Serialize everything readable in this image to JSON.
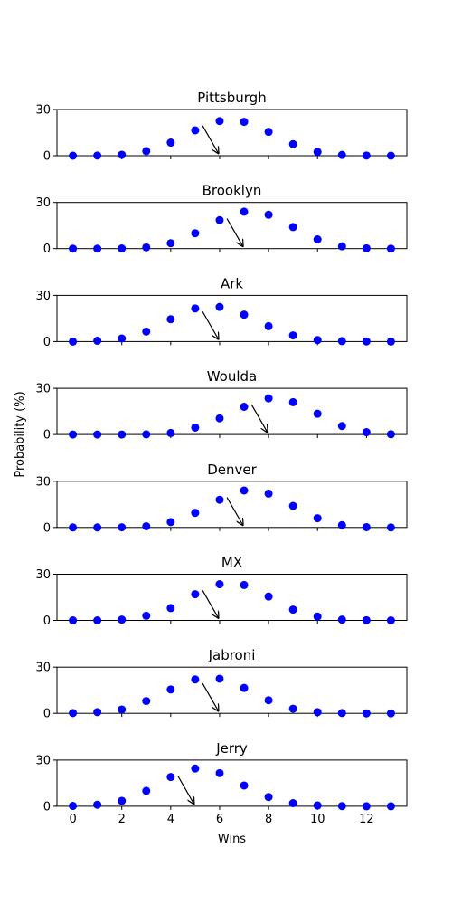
{
  "chart_data": {
    "type": "scatter",
    "xlabel": "Wins",
    "ylabel": "Probability (%)",
    "xlim": [
      -0.65,
      13.65
    ],
    "ylim": [
      0,
      30
    ],
    "x_ticks": [
      0,
      2,
      4,
      6,
      8,
      10,
      12
    ],
    "y_ticks": [
      0,
      30
    ],
    "marker_color": "#0000ff",
    "grid": false,
    "legend": "none",
    "x": [
      0,
      1,
      2,
      3,
      4,
      5,
      6,
      7,
      8,
      9,
      10,
      11,
      12,
      13
    ],
    "panels": [
      {
        "title": "Pittsburgh",
        "values": [
          0.0,
          0.1,
          0.6,
          3.0,
          8.5,
          16.5,
          22.5,
          22.0,
          15.5,
          7.5,
          2.5,
          0.5,
          0.1,
          0.0
        ],
        "arrow_from": [
          5.3,
          19.5
        ],
        "arrow_to": [
          5.95,
          1.5
        ]
      },
      {
        "title": "Brooklyn",
        "values": [
          0.0,
          0.0,
          0.1,
          0.8,
          3.5,
          10.0,
          18.5,
          24.0,
          22.0,
          14.0,
          6.0,
          1.5,
          0.2,
          0.0
        ],
        "arrow_from": [
          6.3,
          19.5
        ],
        "arrow_to": [
          6.95,
          1.5
        ]
      },
      {
        "title": "Ark",
        "values": [
          0.0,
          0.5,
          2.0,
          6.5,
          14.5,
          21.5,
          22.5,
          17.5,
          10.0,
          4.0,
          1.0,
          0.3,
          0.1,
          0.0
        ],
        "arrow_from": [
          5.3,
          19.5
        ],
        "arrow_to": [
          5.95,
          1.5
        ]
      },
      {
        "title": "Woulda",
        "values": [
          0.0,
          0.0,
          0.0,
          0.1,
          1.0,
          4.5,
          10.5,
          18.0,
          23.5,
          21.0,
          13.5,
          5.5,
          1.5,
          0.2
        ],
        "arrow_from": [
          7.3,
          19.5
        ],
        "arrow_to": [
          7.95,
          1.5
        ]
      },
      {
        "title": "Denver",
        "values": [
          0.0,
          0.0,
          0.1,
          0.8,
          3.5,
          9.5,
          18.0,
          24.0,
          22.0,
          14.0,
          6.0,
          1.5,
          0.2,
          0.0
        ],
        "arrow_from": [
          6.3,
          19.5
        ],
        "arrow_to": [
          6.95,
          1.5
        ]
      },
      {
        "title": "MX",
        "values": [
          0.0,
          0.0,
          0.5,
          3.0,
          8.0,
          17.0,
          23.5,
          23.0,
          15.5,
          7.0,
          2.5,
          0.5,
          0.1,
          0.0
        ],
        "arrow_from": [
          5.3,
          19.5
        ],
        "arrow_to": [
          5.95,
          1.5
        ]
      },
      {
        "title": "Jabroni",
        "values": [
          0.2,
          0.8,
          2.5,
          8.0,
          15.5,
          22.0,
          22.5,
          16.5,
          8.5,
          3.0,
          0.8,
          0.2,
          0.0,
          0.0
        ],
        "arrow_from": [
          5.3,
          19.5
        ],
        "arrow_to": [
          5.95,
          1.5
        ]
      },
      {
        "title": "Jerry",
        "values": [
          0.2,
          1.0,
          3.5,
          10.0,
          19.0,
          24.5,
          21.5,
          13.5,
          6.0,
          2.0,
          0.5,
          0.1,
          0.0,
          0.0
        ],
        "arrow_from": [
          4.3,
          19.5
        ],
        "arrow_to": [
          4.95,
          1.5
        ]
      }
    ]
  }
}
